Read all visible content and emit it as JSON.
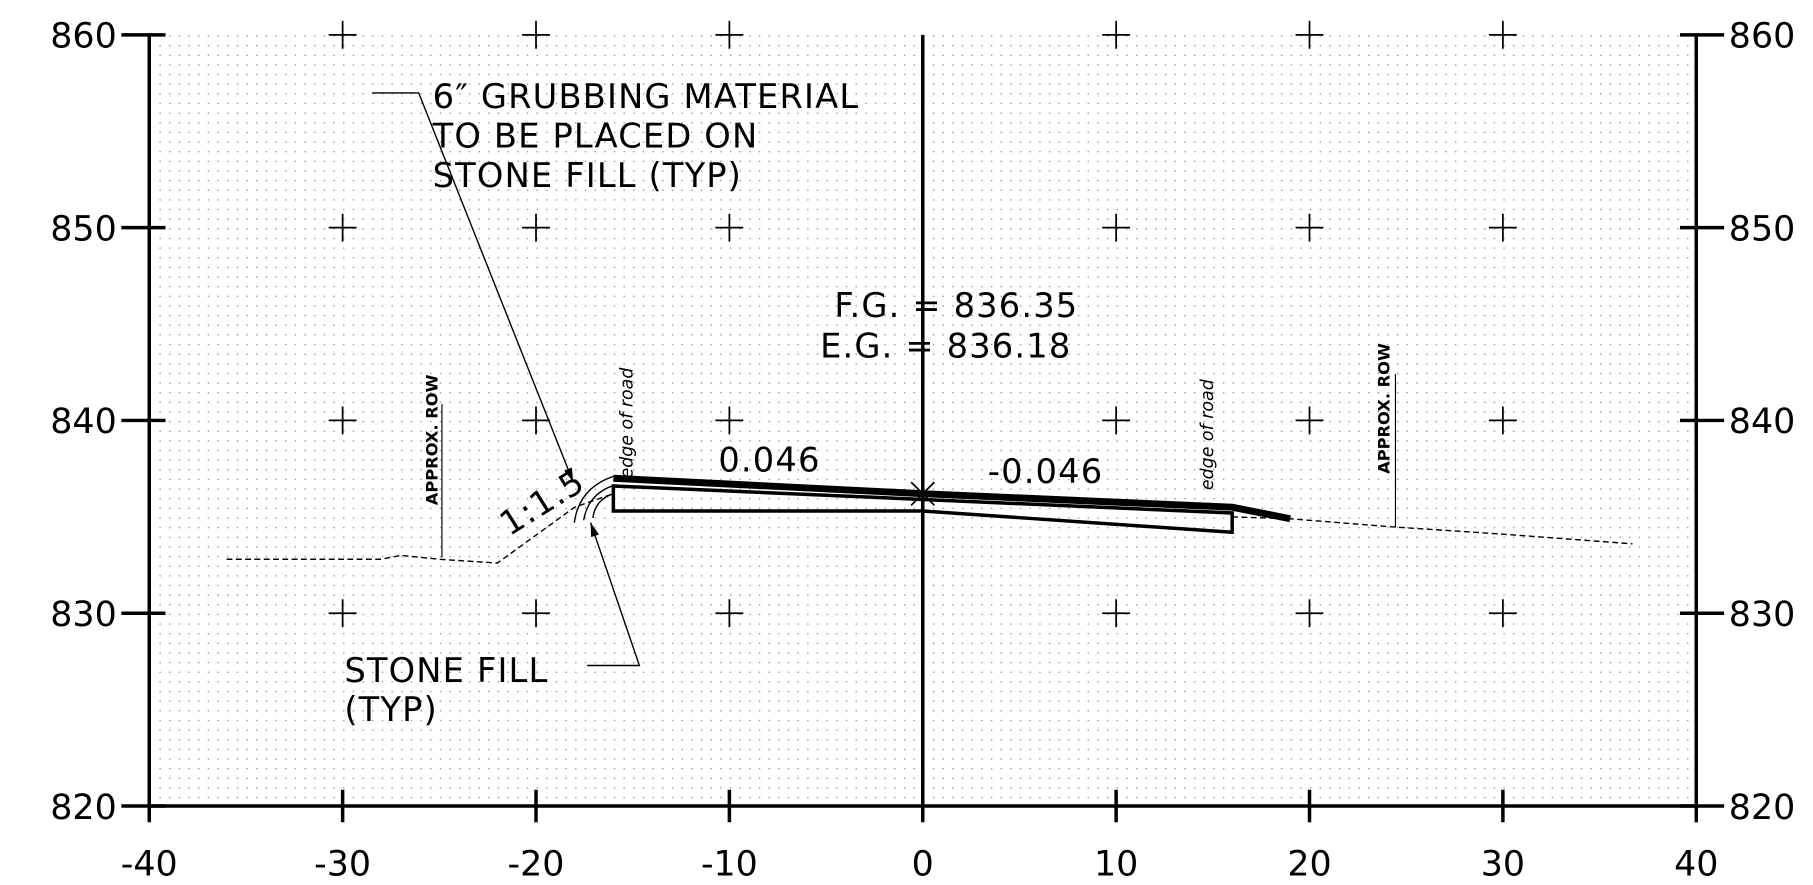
{
  "chart_data": {
    "type": "line",
    "xlim": [
      -40,
      40
    ],
    "ylim": [
      820,
      860
    ],
    "xticks": [
      -40,
      -30,
      -20,
      -10,
      0,
      10,
      20,
      30,
      40
    ],
    "yticks": [
      820,
      830,
      840,
      850,
      860
    ],
    "grid": true,
    "series": [
      {
        "color": "#000",
        "style": "dashed",
        "x": [
          -36,
          -28,
          -27,
          -25,
          -22,
          -18,
          -16
        ],
        "values": [
          832.8,
          832.8,
          833,
          832.8,
          832.6,
          835.5,
          836.2
        ]
      },
      {
        "color": "#000",
        "style": "dashed",
        "x": [
          16,
          19,
          24,
          30,
          36.7
        ],
        "values": [
          835.0,
          834.9,
          834.5,
          834.1,
          833.6
        ]
      },
      {
        "color": "#000",
        "style": "thick",
        "x": [
          -16,
          0,
          16,
          19
        ],
        "values": [
          837.0,
          836.2,
          835.5,
          834.9
        ]
      },
      {
        "color": "#000",
        "style": "box",
        "x": [
          -16,
          0,
          0,
          -16
        ],
        "values": [
          836.6,
          835.9,
          835.3,
          835.3
        ]
      },
      {
        "color": "#000",
        "style": "box",
        "x": [
          0,
          16,
          16,
          0
        ],
        "values": [
          835.9,
          835.2,
          834.2,
          835.3
        ]
      }
    ],
    "annotations": {
      "grubbing": [
        "6″ GRUBBING MATERIAL",
        "TO BE PLACED ON",
        "STONE FILL (TYP)"
      ],
      "fg": "F.G. = 836.35",
      "eg": "E.G. = 836.18",
      "slope_left": "0.046",
      "slope_right": "-0.046",
      "side_slope": "1:1.5",
      "edge_left": "edge of road",
      "edge_right": "edge of road",
      "row_left": "APPROX. ROW",
      "row_right": "APPROX. ROW",
      "stone_fill": [
        "STONE FILL",
        "(TYP)"
      ]
    }
  }
}
